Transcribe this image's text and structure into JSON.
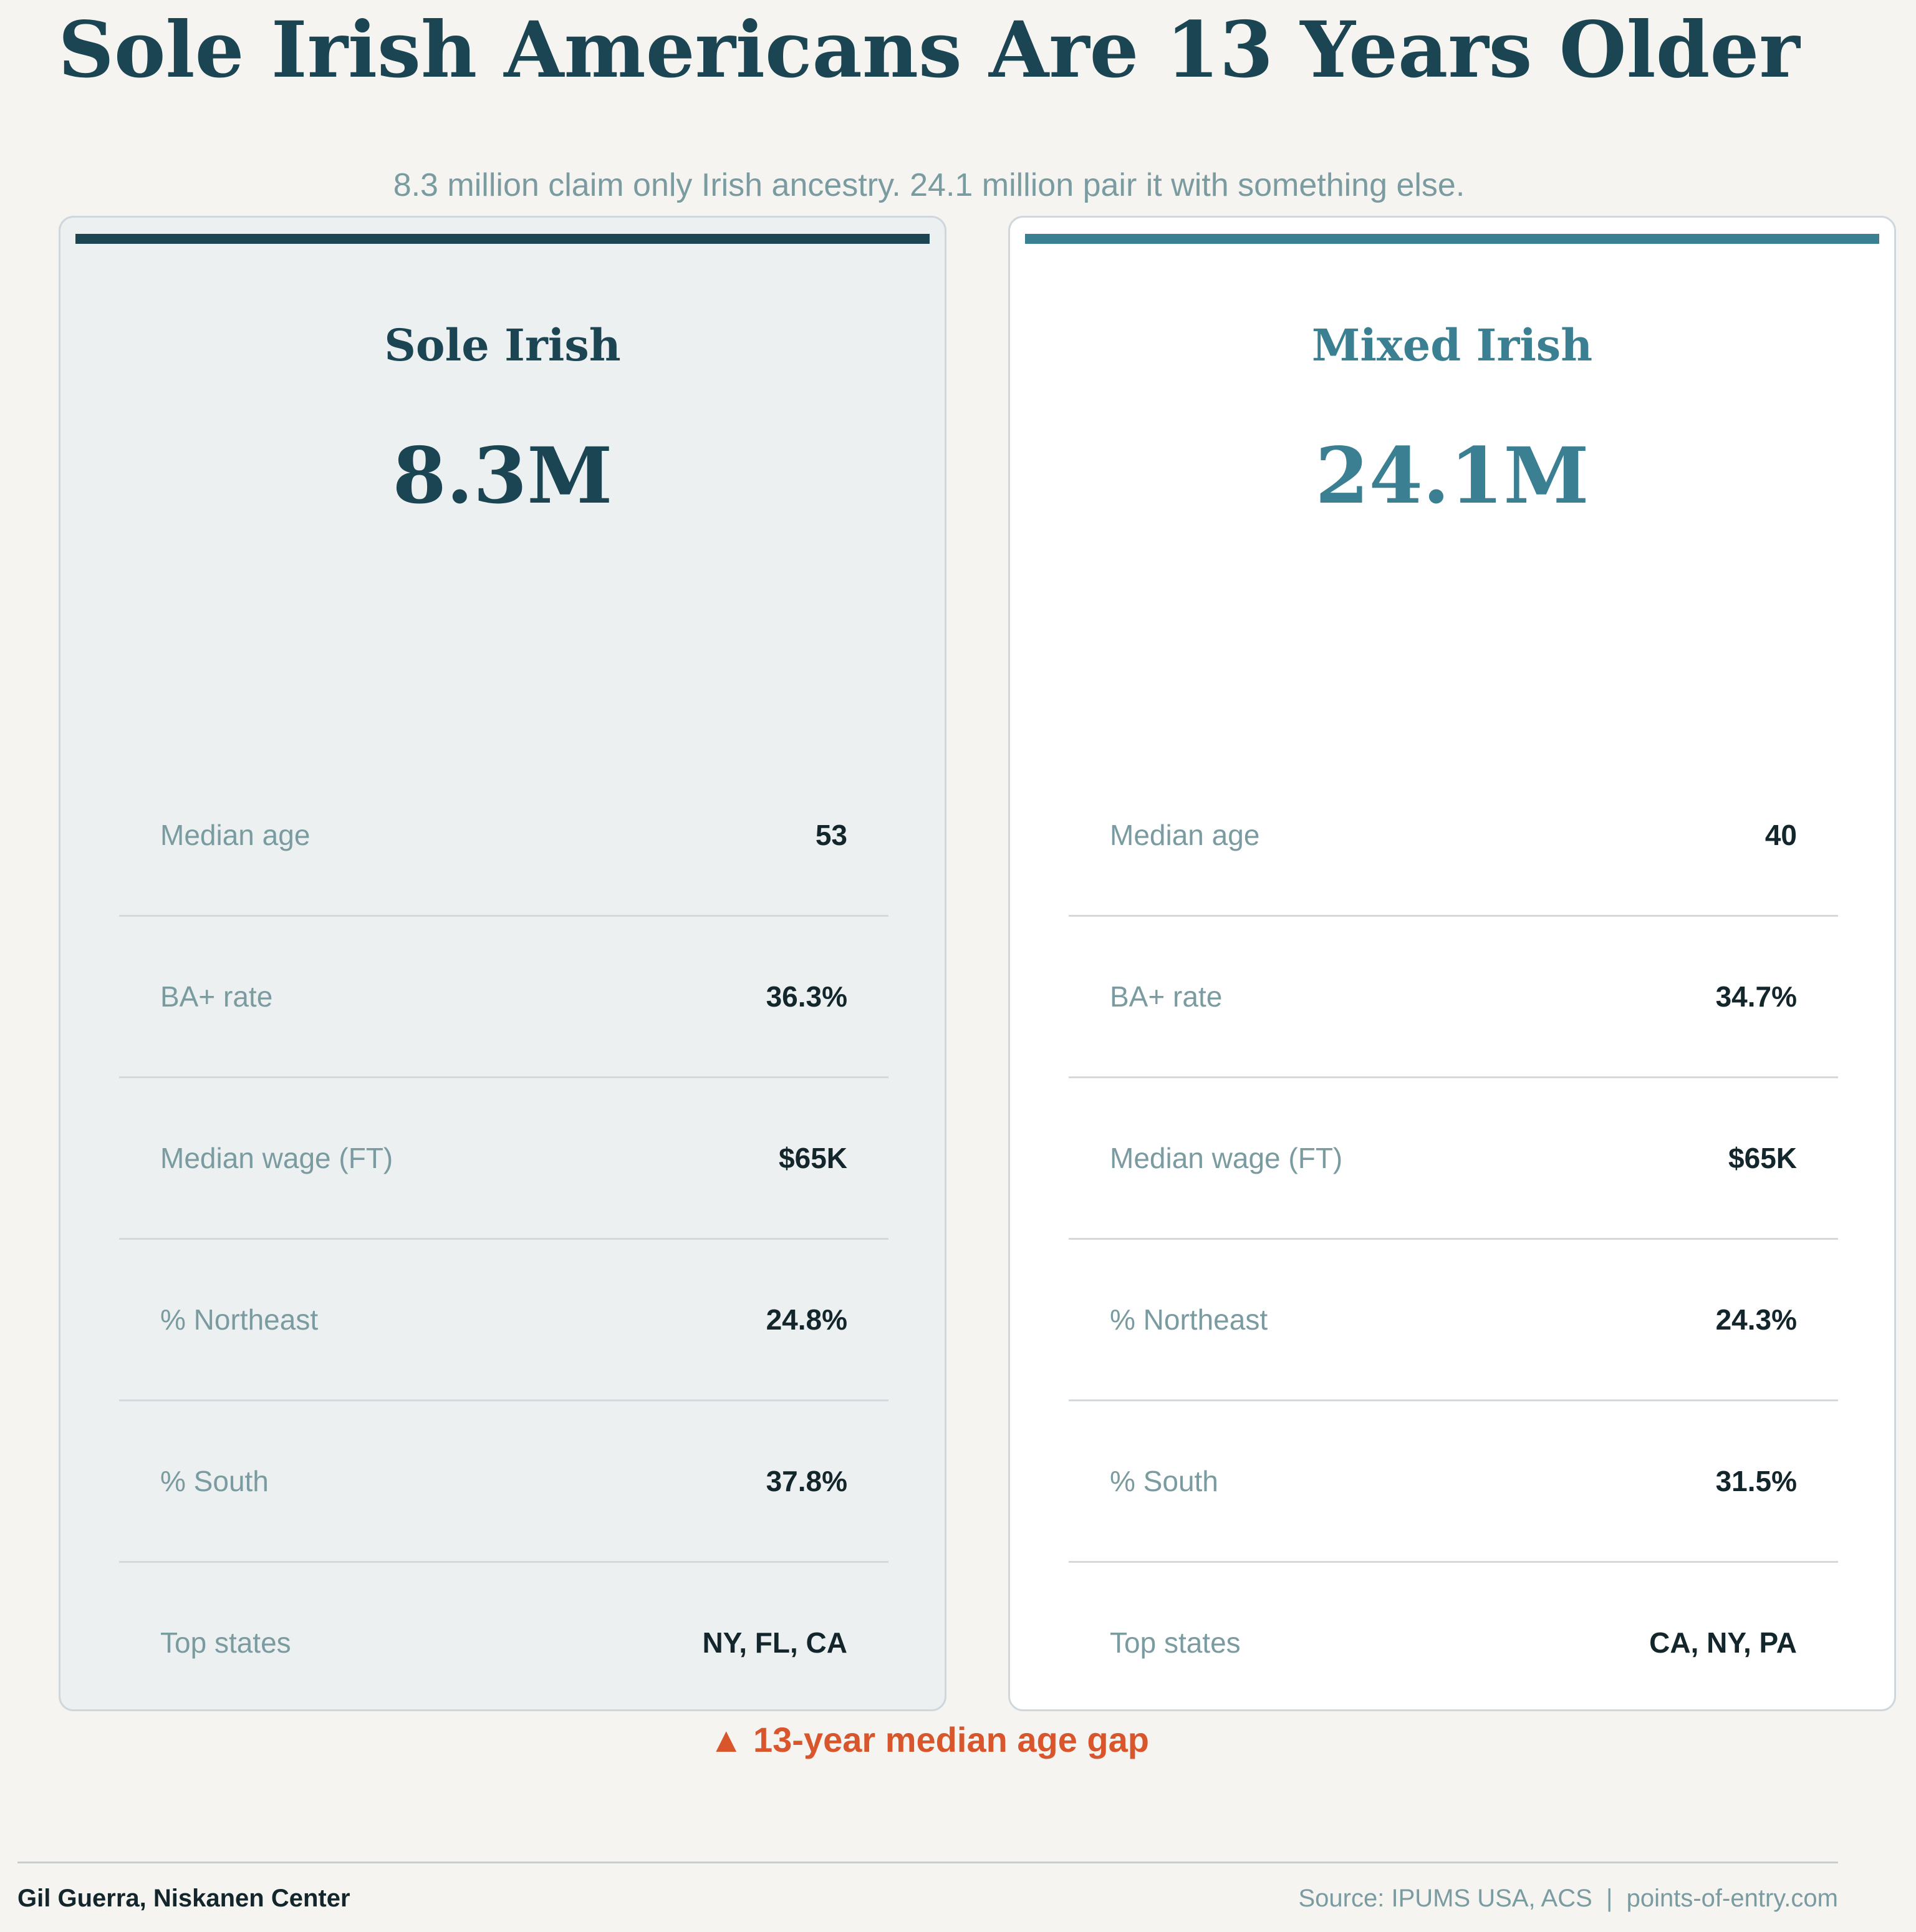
{
  "header": {
    "title": "Sole Irish Americans Are 13 Years Older",
    "subtitle": "8.3 million claim only Irish ancestry. 24.1 million pair it with something else."
  },
  "colors": {
    "sole_accent": "#1b4553",
    "mixed_accent": "#3a7f92",
    "highlight": "#d9552b",
    "background": "#f5f4f0"
  },
  "cards": [
    {
      "title": "Sole Irish",
      "population": "8.3M",
      "stats": [
        {
          "label": "Median age",
          "value": "53"
        },
        {
          "label": "BA+ rate",
          "value": "36.3%"
        },
        {
          "label": "Median wage (FT)",
          "value": "$65K"
        },
        {
          "label": "% Northeast",
          "value": "24.8%"
        },
        {
          "label": "% South",
          "value": "37.8%"
        },
        {
          "label": "Top states",
          "value": "NY, FL, CA"
        }
      ]
    },
    {
      "title": "Mixed Irish",
      "population": "24.1M",
      "stats": [
        {
          "label": "Median age",
          "value": "40"
        },
        {
          "label": "BA+ rate",
          "value": "34.7%"
        },
        {
          "label": "Median wage (FT)",
          "value": "$65K"
        },
        {
          "label": "% Northeast",
          "value": "24.3%"
        },
        {
          "label": "% South",
          "value": "31.5%"
        },
        {
          "label": "Top states",
          "value": "CA, NY, PA"
        }
      ]
    }
  ],
  "callout": {
    "icon": "triangle-up-icon",
    "glyph": "▲",
    "text": "13-year median age gap"
  },
  "footer": {
    "author": "Gil Guerra, Niskanen Center",
    "source": "Source: IPUMS USA, ACS  |  points-of-entry.com"
  }
}
